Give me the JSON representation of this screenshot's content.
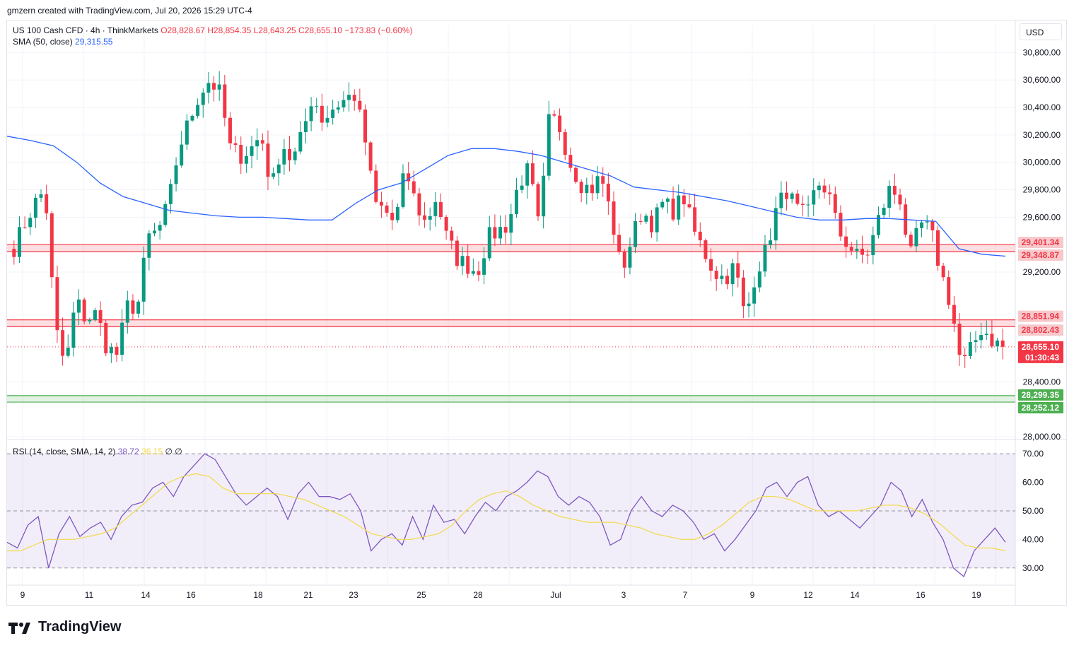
{
  "header": {
    "credit": "gmzern created with TradingView.com, Jul 20, 2026 15:29 UTC-4"
  },
  "legend": {
    "symbol": "US 100 Cash CFD · 4h · ThinkMarkets",
    "ohlc": "O28,828.67  H28,854.35  L28,643.25  C28,655.10  −173.83 (−0.60%)",
    "sma_label": "SMA (50, close)",
    "sma_value": "29,315.55"
  },
  "rsi_legend": {
    "label": "RSI (14, close, SMA, 14, 2)",
    "rsi_value": "38.72",
    "signal_value": "36.15",
    "extra": "∅  ∅"
  },
  "axis": {
    "currency": "USD"
  },
  "brand": {
    "name": "TradingView",
    "logo": "tradingview-logo-icon"
  },
  "colors": {
    "up": "#089981",
    "down": "#f23645",
    "sma": "#2962ff",
    "rsi": "#7e57c2",
    "rsi_signal": "#f2d94a",
    "resistance_zone": "#f23645",
    "support_zone": "#4caf50"
  },
  "chart_data": [
    {
      "type": "candlestick",
      "symbol": "US 100 Cash CFD",
      "timeframe": "4h",
      "ylim": [
        28000,
        30900
      ],
      "y_ticks": [
        "28,000.00",
        "28,400.00",
        "29,200.00",
        "29,600.00",
        "29,800.00",
        "30,000.00",
        "30,200.00",
        "30,400.00",
        "30,600.00",
        "30,800.00"
      ],
      "x_ticks": [
        "9",
        "11",
        "14",
        "16",
        "18",
        "21",
        "23",
        "25",
        "28",
        "Jul",
        "3",
        "7",
        "9",
        "12",
        "14",
        "16",
        "19"
      ],
      "close_path": [
        29380,
        29550,
        29700,
        29800,
        28800,
        28500,
        29000,
        28850,
        28900,
        28650,
        28600,
        28950,
        28950,
        29450,
        29500,
        29700,
        30100,
        30300,
        30500,
        30600,
        30500,
        30100,
        30050,
        30100,
        30200,
        29800,
        30150,
        30000,
        30200,
        30500,
        30300,
        30400,
        30450,
        30500,
        30200,
        29700,
        29650,
        29550,
        29950,
        29700,
        29550,
        29750,
        29450,
        29300,
        29250,
        29200,
        29450,
        29500,
        29550,
        29850,
        29950,
        29500,
        30350,
        30250,
        30000,
        29850,
        29800,
        29900,
        29600,
        29200,
        29450,
        29650,
        29550,
        29700,
        29650,
        29750,
        29500,
        29350,
        29200,
        29150,
        29250,
        28850,
        29200,
        29350,
        29650,
        29800,
        29650,
        29600,
        29850,
        29800,
        29500,
        29400,
        29300,
        29350,
        29600,
        29800,
        29750,
        29300,
        29550,
        29500,
        29200,
        28950,
        28500,
        28650,
        28800,
        28700,
        28655
      ],
      "sma_path": [
        30190,
        30160,
        30120,
        30000,
        29850,
        29750,
        29700,
        29650,
        29630,
        29610,
        29600,
        29600,
        29590,
        29580,
        29580,
        29700,
        29800,
        29850,
        29950,
        30050,
        30100,
        30100,
        30080,
        30050,
        30000,
        29950,
        29900,
        29820,
        29800,
        29780,
        29750,
        29720,
        29680,
        29640,
        29600,
        29580,
        29580,
        29590,
        29590,
        29580,
        29570,
        29370,
        29330,
        29316
      ],
      "series": [
        {
          "name": "SMA (50, close)",
          "value": 29315.55
        }
      ],
      "price_labels": [
        {
          "value": "29,401.34",
          "kind": "resistance"
        },
        {
          "value": "29,348.87",
          "kind": "resistance"
        },
        {
          "value": "28,851.94",
          "kind": "resistance"
        },
        {
          "value": "28,802.43",
          "kind": "resistance"
        },
        {
          "value": "28,655.10",
          "kind": "last-price"
        },
        {
          "value": "01:30:43",
          "kind": "countdown"
        },
        {
          "value": "28,299.35",
          "kind": "support"
        },
        {
          "value": "28,252.12",
          "kind": "support"
        }
      ],
      "zones": [
        {
          "kind": "resistance",
          "from": 29348.87,
          "to": 29401.34
        },
        {
          "kind": "resistance",
          "from": 28802.43,
          "to": 28851.94
        },
        {
          "kind": "support",
          "from": 28252.12,
          "to": 28299.35
        }
      ],
      "last_price": 28655.1
    },
    {
      "type": "line",
      "indicator": "RSI (14, close, SMA, 14, 2)",
      "ylim": [
        24,
        73
      ],
      "y_ticks": [
        "30.00",
        "40.00",
        "50.00",
        "60.00",
        "70.00"
      ],
      "band": [
        30,
        70
      ],
      "midline": 50,
      "series": [
        {
          "name": "RSI",
          "last": 38.72,
          "values": [
            39,
            37,
            45,
            48,
            30,
            42,
            48,
            41,
            44,
            46,
            40,
            48,
            52,
            53,
            58,
            60,
            55,
            62,
            66,
            70,
            68,
            62,
            56,
            52,
            55,
            58,
            55,
            47,
            56,
            60,
            55,
            55,
            54,
            56,
            50,
            36,
            40,
            42,
            38,
            48,
            40,
            52,
            46,
            47,
            42,
            48,
            53,
            50,
            55,
            57,
            60,
            64,
            62,
            55,
            52,
            55,
            53,
            48,
            38,
            40,
            50,
            55,
            50,
            48,
            52,
            50,
            46,
            40,
            42,
            36,
            40,
            45,
            50,
            58,
            60,
            55,
            60,
            62,
            52,
            48,
            50,
            47,
            44,
            48,
            52,
            60,
            57,
            48,
            54,
            46,
            40,
            30,
            27,
            36,
            40,
            44,
            39
          ]
        },
        {
          "name": "Signal",
          "last": 36.15,
          "values": [
            36,
            36,
            38,
            40,
            40,
            40,
            41,
            42,
            44,
            48,
            52,
            56,
            60,
            62,
            63,
            62,
            58,
            56,
            56,
            56,
            56,
            55,
            54,
            52,
            50,
            48,
            45,
            42,
            41,
            40,
            40,
            41,
            42,
            45,
            50,
            54,
            56,
            57,
            55,
            52,
            50,
            48,
            47,
            46,
            46,
            46,
            45,
            44,
            42,
            41,
            40,
            40,
            42,
            45,
            49,
            53,
            55,
            55,
            54,
            52,
            50,
            50,
            50,
            50,
            51,
            52,
            52,
            51,
            49,
            46,
            42,
            38,
            37,
            37,
            36
          ]
        }
      ]
    }
  ]
}
